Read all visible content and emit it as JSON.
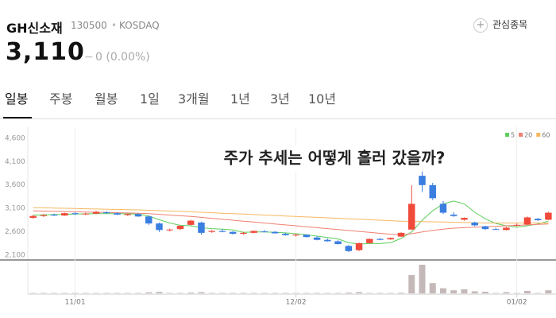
{
  "header": {
    "name": "GH신소재",
    "code": "130500",
    "market": "KOSDAQ",
    "price": "3,110",
    "change_sign": "−",
    "change": "0 (0.00%)",
    "favorite": "관심종목"
  },
  "tabs": [
    "일봉",
    "주봉",
    "월봉",
    "1일",
    "3개월",
    "1년",
    "3년",
    "10년"
  ],
  "chart_data": {
    "type": "candlestick",
    "annotation": "주가 추세는 어떻게 흘러 갔을까?",
    "categories": [
      null,
      null,
      null,
      null,
      "11/01",
      null,
      null,
      null,
      null,
      null,
      null,
      null,
      null,
      null,
      null,
      null,
      null,
      null,
      null,
      null,
      null,
      null,
      null,
      null,
      null,
      "12/02",
      null,
      null,
      null,
      null,
      null,
      null,
      null,
      null,
      null,
      null,
      null,
      null,
      null,
      null,
      null,
      null,
      null,
      null,
      null,
      null,
      "01/02",
      null,
      null,
      null
    ],
    "candles": [
      [
        3000,
        3060,
        2980,
        3040
      ],
      [
        3040,
        3080,
        3020,
        3060
      ],
      [
        3070,
        3090,
        3040,
        3050
      ],
      [
        3050,
        3110,
        3040,
        3100
      ],
      [
        3100,
        3120,
        3060,
        3080
      ],
      [
        3080,
        3110,
        3060,
        3090
      ],
      [
        3090,
        3150,
        3080,
        3130
      ],
      [
        3120,
        3140,
        3090,
        3100
      ],
      [
        3100,
        3120,
        3060,
        3070
      ],
      [
        3060,
        3090,
        3040,
        3080
      ],
      [
        3080,
        3100,
        3020,
        3030
      ],
      [
        3030,
        3050,
        2850,
        2880
      ],
      [
        2880,
        2900,
        2700,
        2740
      ],
      [
        2740,
        2770,
        2710,
        2750
      ],
      [
        2760,
        2840,
        2740,
        2830
      ],
      [
        2850,
        2960,
        2840,
        2940
      ],
      [
        2900,
        2920,
        2640,
        2680
      ],
      [
        2700,
        2740,
        2680,
        2720
      ],
      [
        2720,
        2760,
        2690,
        2700
      ],
      [
        2700,
        2720,
        2640,
        2660
      ],
      [
        2660,
        2700,
        2640,
        2680
      ],
      [
        2680,
        2730,
        2670,
        2720
      ],
      [
        2710,
        2740,
        2690,
        2700
      ],
      [
        2700,
        2720,
        2660,
        2670
      ],
      [
        2660,
        2680,
        2620,
        2630
      ],
      [
        2630,
        2660,
        2600,
        2640
      ],
      [
        2640,
        2650,
        2580,
        2590
      ],
      [
        2580,
        2610,
        2520,
        2530
      ],
      [
        2530,
        2560,
        2490,
        2500
      ],
      [
        2500,
        2520,
        2430,
        2440
      ],
      [
        2400,
        2420,
        2270,
        2290
      ],
      [
        2310,
        2470,
        2290,
        2460
      ],
      [
        2460,
        2560,
        2450,
        2550
      ],
      [
        2550,
        2570,
        2520,
        2530
      ],
      [
        2540,
        2580,
        2530,
        2570
      ],
      [
        2600,
        2690,
        2590,
        2680
      ],
      [
        2750,
        3700,
        2740,
        3300
      ],
      [
        3900,
        4150,
        3550,
        3700
      ],
      [
        3700,
        3750,
        3380,
        3420
      ],
      [
        3300,
        3360,
        3080,
        3110
      ],
      [
        3070,
        3120,
        3020,
        3040
      ],
      [
        2960,
        3010,
        2940,
        3000
      ],
      [
        2900,
        2920,
        2820,
        2840
      ],
      [
        2820,
        2830,
        2740,
        2760
      ],
      [
        2760,
        2790,
        2740,
        2750
      ],
      [
        2740,
        2810,
        2730,
        2790
      ],
      [
        2840,
        2880,
        2820,
        2850
      ],
      [
        2860,
        3030,
        2850,
        3010
      ],
      [
        2980,
        3000,
        2930,
        2950
      ],
      [
        2960,
        3130,
        2950,
        3110
      ]
    ],
    "up_color": "#f04a3a",
    "down_color": "#3a7ee0",
    "series": [
      {
        "name": "5",
        "color": "#5ccf5c",
        "values": [
          3060,
          3065,
          3070,
          3075,
          3080,
          3085,
          3090,
          3090,
          3090,
          3085,
          3080,
          3040,
          2960,
          2890,
          2840,
          2830,
          2790,
          2770,
          2760,
          2740,
          2690,
          2700,
          2700,
          2690,
          2680,
          2660,
          2640,
          2610,
          2580,
          2550,
          2470,
          2440,
          2450,
          2450,
          2470,
          2560,
          2700,
          2950,
          3150,
          3300,
          3360,
          3300,
          3120,
          2980,
          2880,
          2830,
          2800,
          2830,
          2870,
          2930
        ]
      },
      {
        "name": "20",
        "color": "#f08070",
        "values": [
          3150,
          3145,
          3140,
          3135,
          3130,
          3125,
          3120,
          3115,
          3110,
          3105,
          3100,
          3090,
          3075,
          3060,
          3045,
          3030,
          3010,
          2990,
          2970,
          2950,
          2930,
          2910,
          2890,
          2870,
          2850,
          2830,
          2810,
          2790,
          2770,
          2750,
          2730,
          2710,
          2690,
          2670,
          2650,
          2640,
          2660,
          2700,
          2730,
          2760,
          2780,
          2790,
          2800,
          2810,
          2820,
          2830,
          2840,
          2850,
          2860,
          2870
        ]
      },
      {
        "name": "60",
        "color": "#f5b860",
        "values": [
          3220,
          3215,
          3210,
          3205,
          3200,
          3195,
          3190,
          3185,
          3180,
          3175,
          3170,
          3162,
          3154,
          3146,
          3138,
          3130,
          3120,
          3110,
          3100,
          3090,
          3080,
          3070,
          3060,
          3050,
          3040,
          3030,
          3020,
          3010,
          3000,
          2990,
          2980,
          2970,
          2960,
          2950,
          2940,
          2930,
          2925,
          2920,
          2915,
          2910,
          2905,
          2900,
          2895,
          2890,
          2890,
          2890,
          2890,
          2890,
          2890,
          2890
        ]
      }
    ],
    "volume": [
      20,
      20,
      20,
      20,
      20,
      20,
      20,
      20,
      20,
      20,
      20,
      50,
      70,
      20,
      20,
      40,
      60,
      20,
      20,
      20,
      20,
      20,
      20,
      20,
      20,
      20,
      20,
      20,
      20,
      20,
      40,
      60,
      20,
      20,
      20,
      30,
      900,
      1400,
      500,
      250,
      150,
      200,
      100,
      80,
      20,
      60,
      20,
      120,
      20,
      150
    ],
    "volume_color": "#c4b8b8",
    "ylim": [
      2100,
      4700
    ],
    "yticks": [
      {
        "value": 2100,
        "label": "2,100"
      },
      {
        "value": 2600,
        "label": "2,600"
      },
      {
        "value": 3100,
        "label": "3,100"
      },
      {
        "value": 3600,
        "label": "3,600"
      },
      {
        "value": 4100,
        "label": "4,100"
      },
      {
        "value": 4600,
        "label": "4,600"
      }
    ]
  }
}
